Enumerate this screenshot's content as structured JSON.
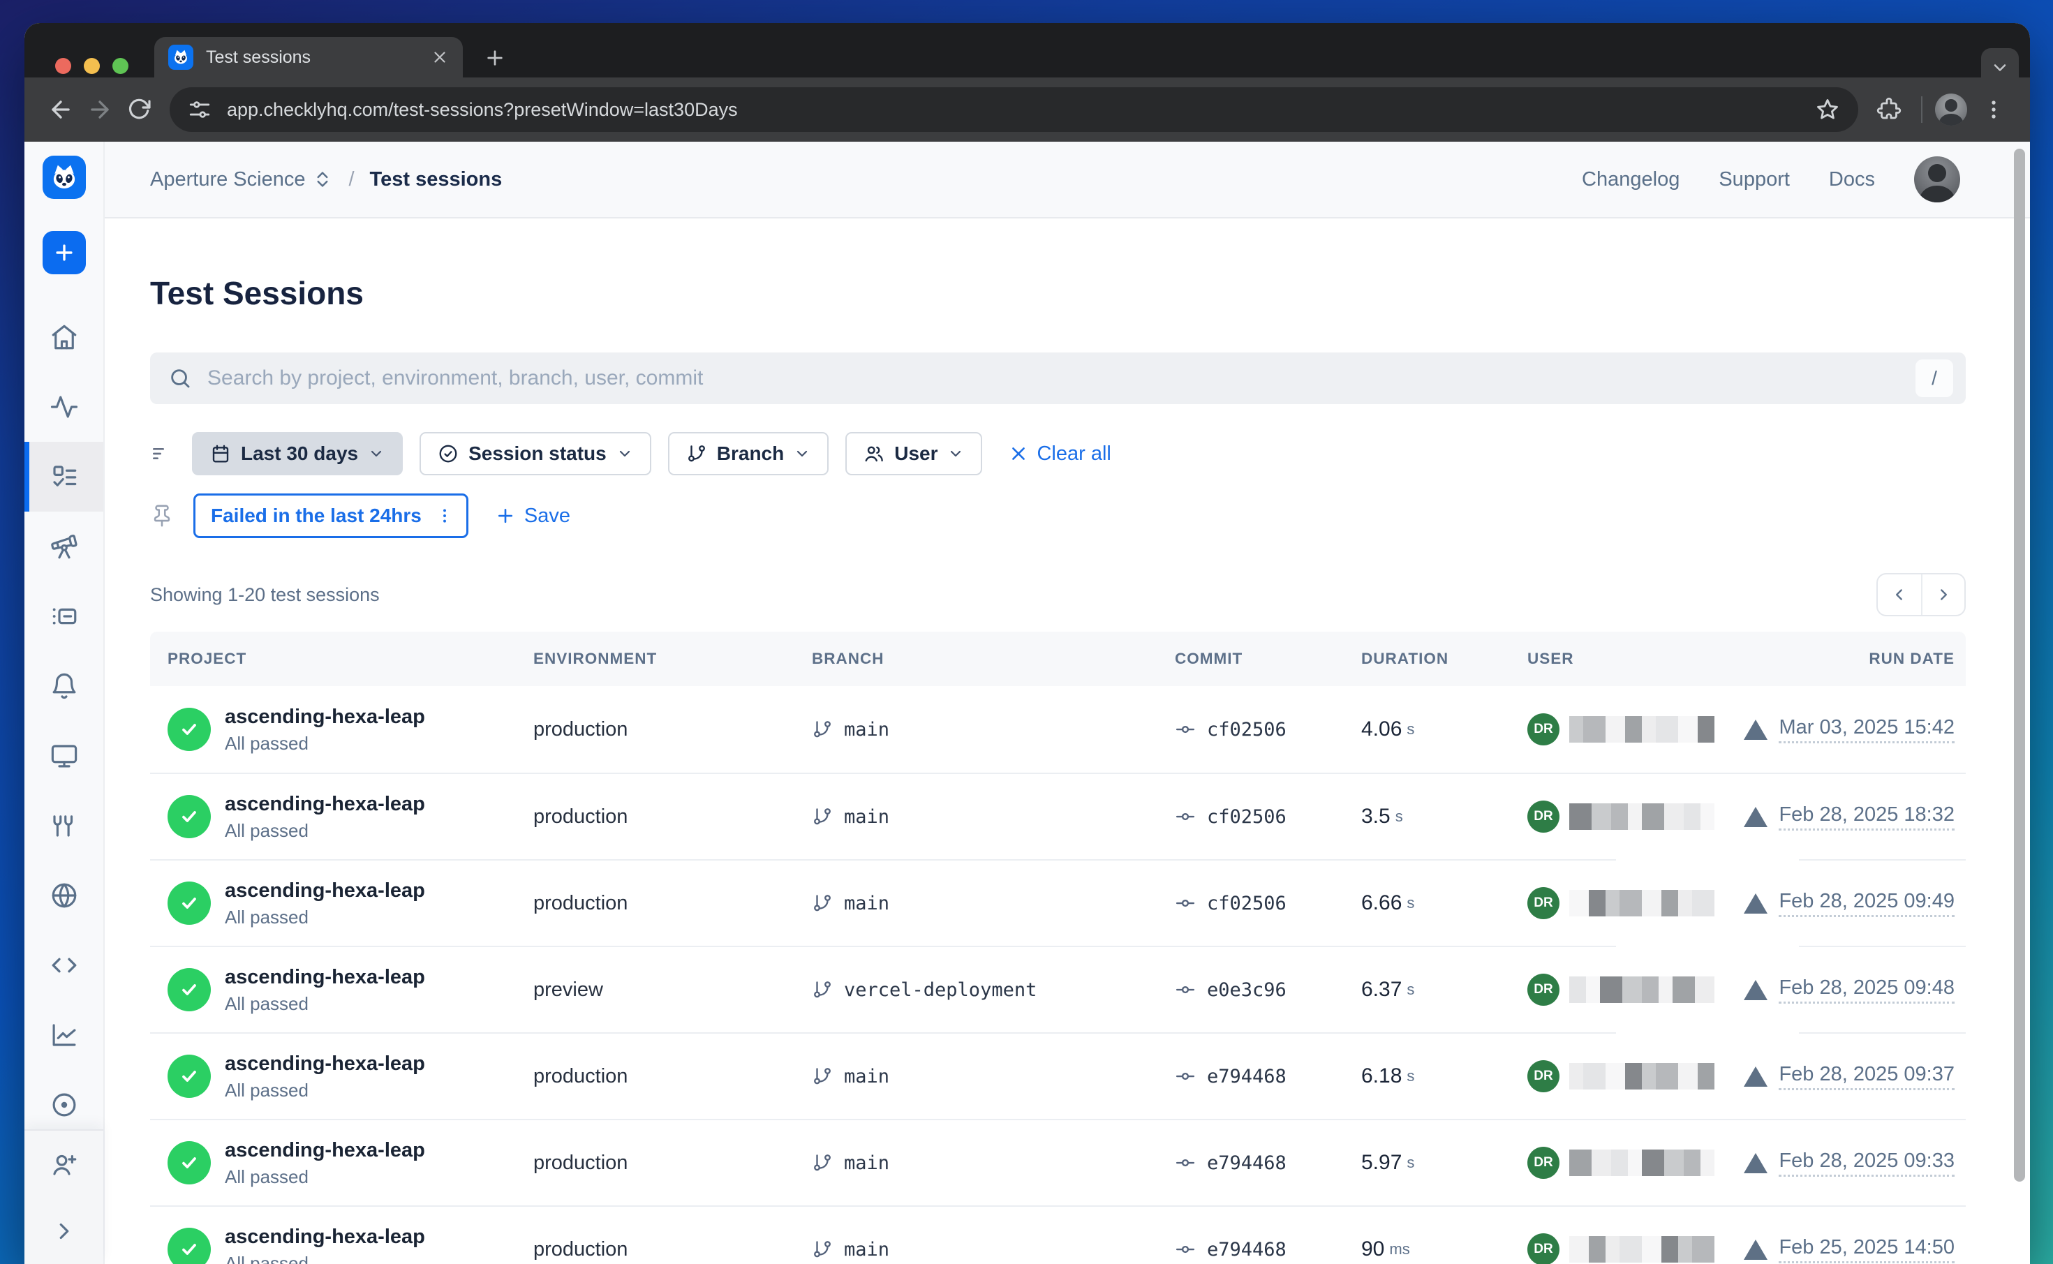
{
  "browser": {
    "tab_title": "Test sessions",
    "url": "app.checklyhq.com/test-sessions?presetWindow=last30Days"
  },
  "topbar": {
    "account_name": "Aperture Science",
    "breadcrumb_separator": "/",
    "current_page": "Test sessions",
    "nav": [
      "Changelog",
      "Support",
      "Docs"
    ]
  },
  "main": {
    "title": "Test Sessions",
    "search_placeholder": "Search by project, environment, branch, user, commit",
    "search_shortcut": "/",
    "filters": {
      "date_range": "Last 30 days",
      "session_status": "Session status",
      "branch": "Branch",
      "user": "User",
      "clear_all": "Clear all"
    },
    "saved_filter": "Failed in the last 24hrs",
    "save": "Save",
    "showing": "Showing 1-20 test sessions"
  },
  "table": {
    "columns": [
      "PROJECT",
      "ENVIRONMENT",
      "BRANCH",
      "COMMIT",
      "DURATION",
      "USER",
      "RUN DATE"
    ],
    "rows": [
      {
        "project": "ascending-hexa-leap",
        "status_text": "All passed",
        "environment": "production",
        "branch": "main",
        "commit": "cf02506",
        "duration": "4.06",
        "duration_unit": "s",
        "user_initials": "DR",
        "run_date": "Mar 03, 2025 15:42"
      },
      {
        "project": "ascending-hexa-leap",
        "status_text": "All passed",
        "environment": "production",
        "branch": "main",
        "commit": "cf02506",
        "duration": "3.5",
        "duration_unit": "s",
        "user_initials": "DR",
        "run_date": "Feb 28, 2025 18:32"
      },
      {
        "project": "ascending-hexa-leap",
        "status_text": "All passed",
        "environment": "production",
        "branch": "main",
        "commit": "cf02506",
        "duration": "6.66",
        "duration_unit": "s",
        "user_initials": "DR",
        "run_date": "Feb 28, 2025 09:49"
      },
      {
        "project": "ascending-hexa-leap",
        "status_text": "All passed",
        "environment": "preview",
        "branch": "vercel-deployment",
        "commit": "e0e3c96",
        "duration": "6.37",
        "duration_unit": "s",
        "user_initials": "DR",
        "run_date": "Feb 28, 2025 09:48"
      },
      {
        "project": "ascending-hexa-leap",
        "status_text": "All passed",
        "environment": "production",
        "branch": "main",
        "commit": "e794468",
        "duration": "6.18",
        "duration_unit": "s",
        "user_initials": "DR",
        "run_date": "Feb 28, 2025 09:37"
      },
      {
        "project": "ascending-hexa-leap",
        "status_text": "All passed",
        "environment": "production",
        "branch": "main",
        "commit": "e794468",
        "duration": "5.97",
        "duration_unit": "s",
        "user_initials": "DR",
        "run_date": "Feb 28, 2025 09:33"
      },
      {
        "project": "ascending-hexa-leap",
        "status_text": "All passed",
        "environment": "production",
        "branch": "main",
        "commit": "e794468",
        "duration": "90",
        "duration_unit": "ms",
        "user_initials": "DR",
        "run_date": "Feb 25, 2025 14:50"
      }
    ]
  },
  "colors": {
    "accent_blue": "#0b6cf0",
    "link_blue": "#1a6ee8",
    "success_green": "#2bcf63",
    "avatar_green": "#2e7d46",
    "vercel_gray": "#5e7085"
  }
}
